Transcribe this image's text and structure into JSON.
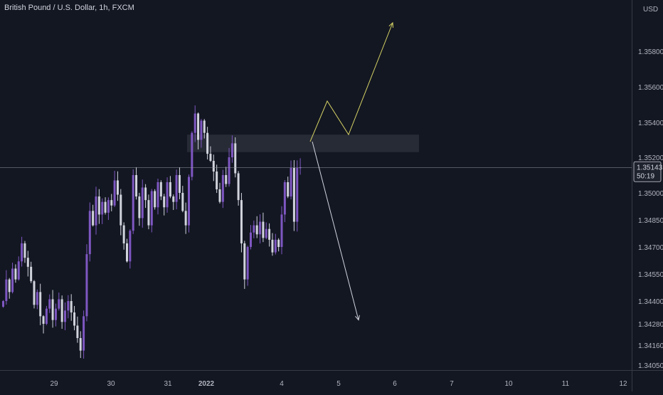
{
  "header": {
    "symbol_text": "British Pound / U.S. Dollar, 1h, FXCM"
  },
  "price_scale": {
    "currency": "USD"
  },
  "colors": {
    "background": "#131722",
    "bull": "#7e57c2",
    "bear": "#d1d4dc",
    "axis_text": "#b2b5be",
    "projection_up": "#d4d163",
    "projection_down": "#d1d4dc",
    "zone": "#2a2e39"
  },
  "chart_data": {
    "type": "candlestick",
    "title": "British Pound / U.S. Dollar, 1h, FXCM",
    "y_tick_labels": [
      "1.35800",
      "1.35600",
      "1.35400",
      "1.35200",
      "1.35000",
      "1.34850",
      "1.34700",
      "1.34550",
      "1.34400",
      "1.34280",
      "1.34160",
      "1.34050"
    ],
    "x_tick_labels": [
      "29",
      "30",
      "31",
      "2022",
      "4",
      "5",
      "6",
      "7",
      "10",
      "11",
      "12"
    ],
    "last_price": "1.35143",
    "countdown": "50:19",
    "supply_zone": {
      "from_price": 1.3523,
      "to_price": 1.3533
    },
    "projection_up": [
      [
        1.3529
      ],
      [
        1.3552
      ],
      [
        1.3533
      ],
      [
        1.3596
      ]
    ],
    "projection_down": [
      [
        1.3529
      ],
      [
        1.343
      ]
    ],
    "candles_close": [
      1.344,
      1.3452,
      1.3445,
      1.3458,
      1.3452,
      1.3462,
      1.3472,
      1.3464,
      1.3459,
      1.3451,
      1.3438,
      1.3445,
      1.3432,
      1.3428,
      1.3436,
      1.3441,
      1.343,
      1.3436,
      1.3441,
      1.3429,
      1.3435,
      1.344,
      1.3434,
      1.3427,
      1.342,
      1.3413,
      1.3432,
      1.3466,
      1.349,
      1.3482,
      1.3498,
      1.3488,
      1.3495,
      1.3489,
      1.3496,
      1.3493,
      1.3507,
      1.3499,
      1.3482,
      1.3472,
      1.3462,
      1.3479,
      1.351,
      1.3498,
      1.3486,
      1.3503,
      1.3496,
      1.3482,
      1.3501,
      1.3492,
      1.3506,
      1.3498,
      1.3492,
      1.3506,
      1.3498,
      1.3495,
      1.351,
      1.35,
      1.349,
      1.3482,
      1.3509,
      1.3534,
      1.3545,
      1.353,
      1.3541,
      1.3534,
      1.3522,
      1.3518,
      1.3512,
      1.3502,
      1.3495,
      1.351,
      1.3505,
      1.352,
      1.3528,
      1.3511,
      1.3496,
      1.3472,
      1.3452,
      1.347,
      1.3478,
      1.3482,
      1.3477,
      1.3484,
      1.3475,
      1.348,
      1.3474,
      1.3467,
      1.3474,
      1.347,
      1.3488,
      1.3506,
      1.3498,
      1.3514,
      1.3484,
      1.3514,
      1.35143
    ]
  }
}
